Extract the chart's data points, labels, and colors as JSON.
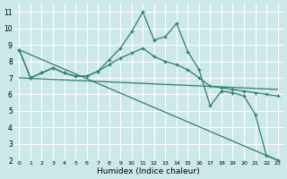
{
  "xlabel": "Humidex (Indice chaleur)",
  "bg_color": "#cce8e8",
  "grid_color": "#ffffff",
  "line_color": "#2e7d6e",
  "xlim": [
    -0.5,
    23.5
  ],
  "ylim": [
    2,
    11.5
  ],
  "xticks": [
    0,
    1,
    2,
    3,
    4,
    5,
    6,
    7,
    8,
    9,
    10,
    11,
    12,
    13,
    14,
    15,
    16,
    17,
    18,
    19,
    20,
    21,
    22,
    23
  ],
  "yticks": [
    2,
    3,
    4,
    5,
    6,
    7,
    8,
    9,
    10,
    11
  ],
  "series": {
    "spiky_x": [
      0,
      1,
      2,
      3,
      4,
      5,
      6,
      7,
      8,
      9,
      10,
      11,
      12,
      13,
      14,
      15,
      16,
      17,
      18,
      19,
      20,
      21,
      22,
      23
    ],
    "spiky_y": [
      8.7,
      7.0,
      7.3,
      7.6,
      7.3,
      7.1,
      7.1,
      7.4,
      8.1,
      8.8,
      9.8,
      11.0,
      9.3,
      9.5,
      10.3,
      8.6,
      7.5,
      5.3,
      6.2,
      6.1,
      5.9,
      4.8,
      2.3,
      2.0
    ],
    "smooth_x": [
      0,
      1,
      2,
      3,
      4,
      5,
      6,
      7,
      8,
      9,
      10,
      11,
      12,
      13,
      14,
      15,
      16,
      17,
      18,
      19,
      20,
      21,
      22,
      23
    ],
    "smooth_y": [
      8.7,
      7.0,
      7.3,
      7.6,
      7.3,
      7.1,
      7.1,
      7.4,
      7.8,
      8.2,
      8.5,
      8.8,
      8.3,
      8.0,
      7.8,
      7.5,
      7.0,
      6.5,
      6.4,
      6.3,
      6.2,
      6.1,
      6.0,
      5.9
    ],
    "trend1_x": [
      0,
      23
    ],
    "trend1_y": [
      8.7,
      2.0
    ],
    "trend2_x": [
      0,
      23
    ],
    "trend2_y": [
      7.0,
      6.3
    ]
  }
}
